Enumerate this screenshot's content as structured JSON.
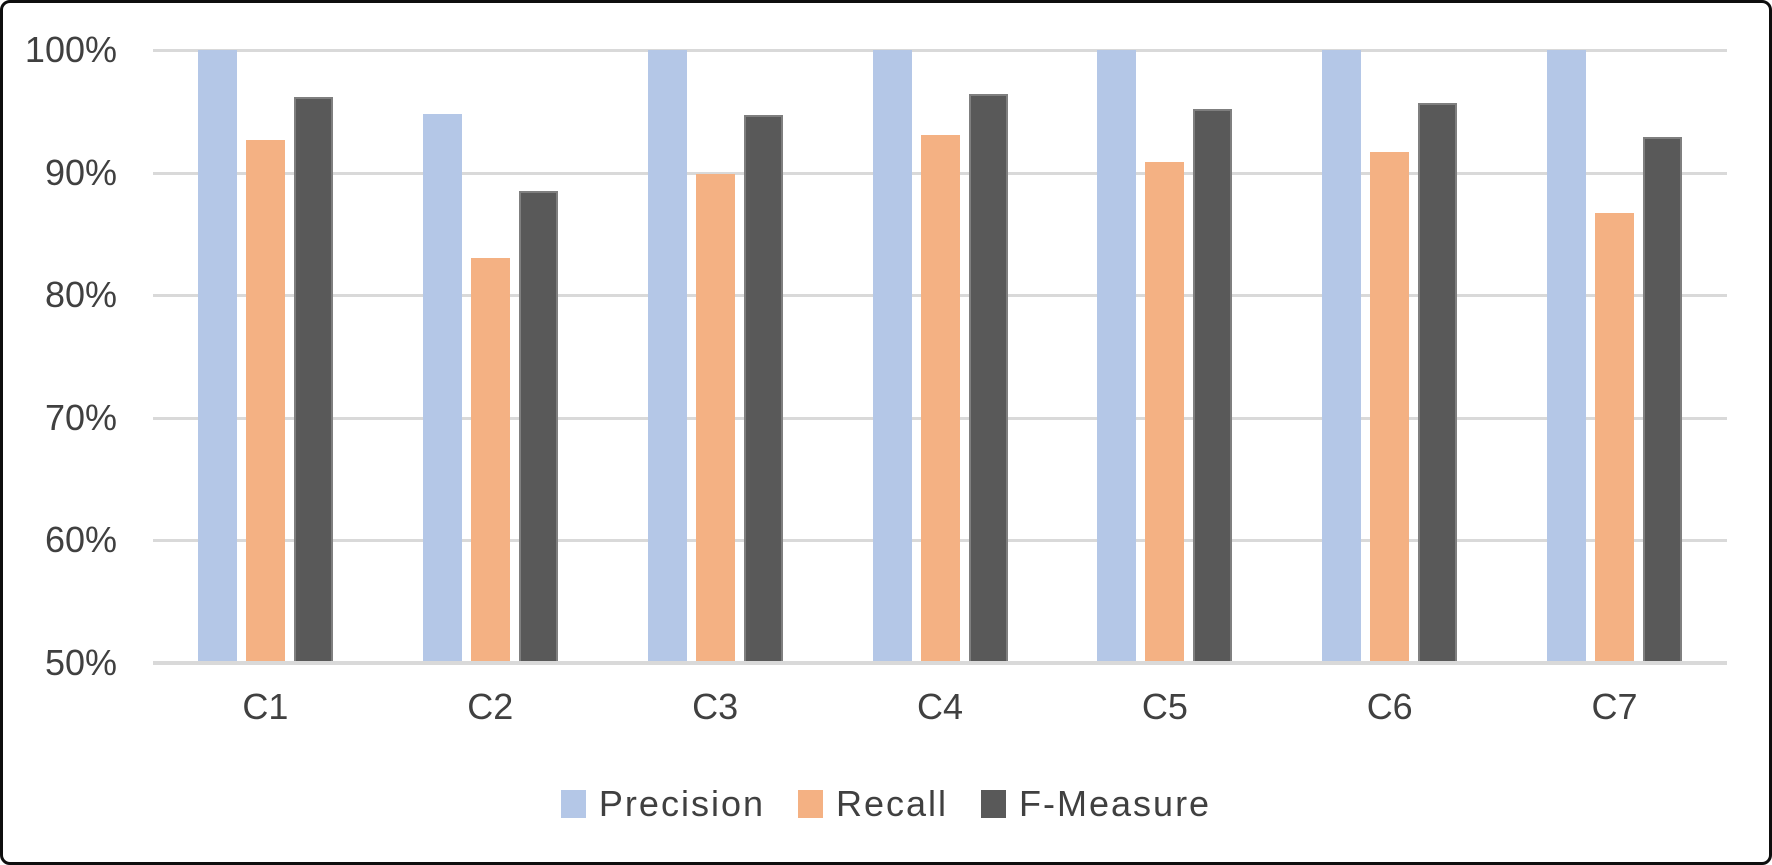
{
  "chart_data": {
    "type": "bar",
    "title": "",
    "xlabel": "",
    "ylabel": "",
    "categories": [
      "C1",
      "C2",
      "C3",
      "C4",
      "C5",
      "C6",
      "C7"
    ],
    "series": [
      {
        "name": "Precision",
        "color": "#b4c7e7",
        "values": [
          100,
          94.8,
          100,
          100,
          100,
          100,
          100
        ]
      },
      {
        "name": "Recall",
        "color": "#f4b183",
        "values": [
          92.7,
          83.0,
          89.9,
          93.1,
          90.9,
          91.7,
          86.7
        ]
      },
      {
        "name": "F-Measure",
        "color": "#595959",
        "border_color": "#7f7f7f",
        "values": [
          96.2,
          88.5,
          94.7,
          96.4,
          95.2,
          95.7,
          92.9
        ]
      }
    ],
    "ylim": [
      50,
      100
    ],
    "y_ticks": [
      {
        "value": 100,
        "label": "100%"
      },
      {
        "value": 90,
        "label": "90%"
      },
      {
        "value": 80,
        "label": "80%"
      },
      {
        "value": 70,
        "label": "70%"
      },
      {
        "value": 60,
        "label": "60%"
      },
      {
        "value": 50,
        "label": "50%"
      }
    ],
    "grid": true,
    "legend_position": "bottom",
    "value_format": "percent",
    "colors": {
      "gridline": "#d9d9d9",
      "axis_text": "#404040",
      "frame_border": "#0e0e0e"
    }
  }
}
